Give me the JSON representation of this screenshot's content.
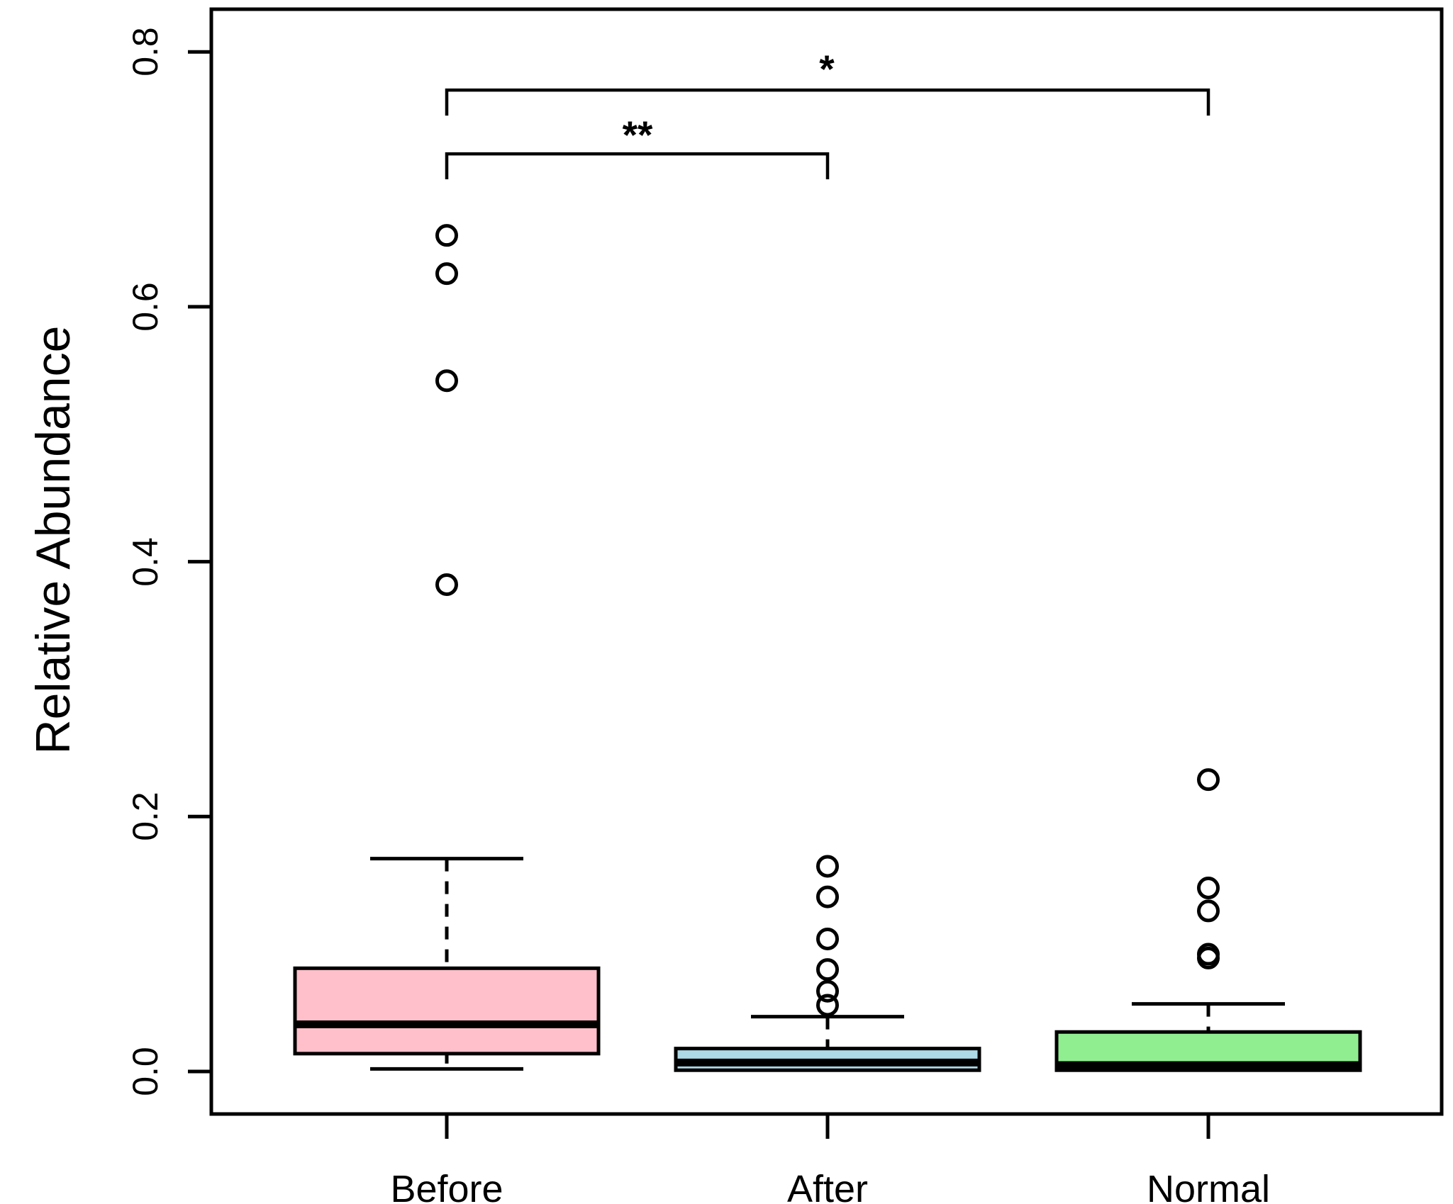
{
  "chart_data": {
    "type": "boxplot",
    "title": "",
    "ylabel": "Relative Abundance",
    "xlabel": "",
    "ylim": [
      -0.033,
      0.834
    ],
    "grid": false,
    "categories": [
      "Before",
      "After",
      "Normal"
    ],
    "y_axis": {
      "ticks": [
        {
          "value": 0.0,
          "label": "0.0"
        },
        {
          "value": 0.2,
          "label": "0.2"
        },
        {
          "value": 0.4,
          "label": "0.4"
        },
        {
          "value": 0.6,
          "label": "0.6"
        },
        {
          "value": 0.8,
          "label": "0.8"
        }
      ]
    },
    "groups": [
      {
        "label": "Before",
        "fill_color": "#FFC0CB",
        "q1": 0.014,
        "median": 0.037,
        "q3": 0.081,
        "whisker_low": 0.002,
        "whisker_high": 0.167,
        "outliers": [
          0.382,
          0.542,
          0.626,
          0.656
        ]
      },
      {
        "label": "After",
        "fill_color": "#ADD8E6",
        "q1": 0.001,
        "median": 0.007,
        "q3": 0.018,
        "whisker_low": null,
        "whisker_high": 0.043,
        "outliers": [
          0.052,
          0.063,
          0.08,
          0.104,
          0.137,
          0.161
        ]
      },
      {
        "label": "Normal",
        "fill_color": "#90EE90",
        "q1": 0.001,
        "median": 0.005,
        "q3": 0.031,
        "whisker_low": null,
        "whisker_high": 0.053,
        "outliers": [
          0.089,
          0.092,
          0.126,
          0.144,
          0.229
        ]
      }
    ],
    "significance": [
      {
        "from": "Before",
        "to": "After",
        "label": "**",
        "bar_value": 0.72,
        "tick_value": 0.7,
        "label_value": 0.736
      },
      {
        "from": "Before",
        "to": "Normal",
        "label": "*",
        "bar_value": 0.77,
        "tick_value": 0.75,
        "label_value": 0.789
      }
    ],
    "line_color": "#000000",
    "background_color": "#ffffff"
  }
}
